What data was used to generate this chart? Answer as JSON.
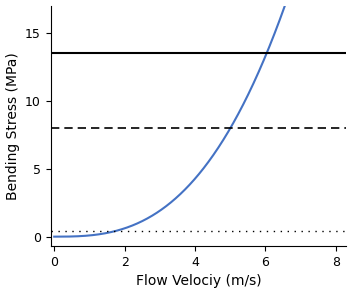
{
  "xlabel": "Flow Velociy (m/s)",
  "ylabel": "Bending Stress (MPa)",
  "xlim": [
    -0.1,
    8.3
  ],
  "ylim": [
    -0.7,
    17.0
  ],
  "yticks": [
    0,
    5,
    10,
    15
  ],
  "xticks": [
    0,
    2,
    4,
    6,
    8
  ],
  "curve_color": "#4472C4",
  "hline_solid_y": 13.5,
  "hline_dashed_y": 8.0,
  "hline_dotted_y": 0.45,
  "hline_solid_color": "#000000",
  "hline_dashed_color": "#000000",
  "hline_dotted_color": "#000000",
  "curve_power": 2.8,
  "curve_scale": 0.088,
  "background_color": "#ffffff",
  "xlabel_color": "#000000",
  "ylabel_color": "#000000",
  "tick_color": "#000000",
  "font_size_label": 10,
  "font_size_tick": 9,
  "hline_solid_lw": 1.5,
  "hline_dashed_lw": 1.2,
  "hline_dotted_lw": 1.0,
  "curve_lw": 1.5
}
